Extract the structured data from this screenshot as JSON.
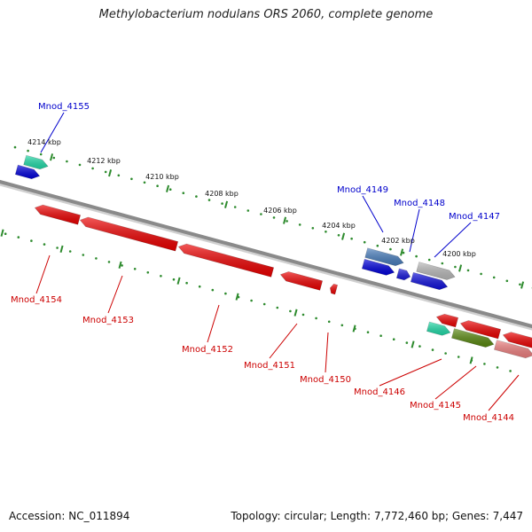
{
  "title": "Methylobacterium nodulans ORS 2060, complete genome",
  "footer": {
    "accession": "Accession: NC_011894",
    "summary": "Topology: circular; Length: 7,772,460 bp; Genes: 7,447"
  },
  "colors": {
    "backbone": "#8a8a8a",
    "tick": "#2e8b2e",
    "forward_label": "#0000cc",
    "reverse_label": "#cc0000"
  },
  "scale": {
    "unit": "kbp",
    "labels": [
      "4214 kbp",
      "4212 kbp",
      "4210 kbp",
      "4208 kbp",
      "4206 kbp",
      "4204 kbp",
      "4202 kbp",
      "4200 kbp"
    ]
  },
  "genes": [
    {
      "name": "Mnod_4155",
      "strand": "forward",
      "color": "#0000dd"
    },
    {
      "name": "Mnod_4149",
      "strand": "forward",
      "color": "#0000dd"
    },
    {
      "name": "Mnod_4148",
      "strand": "forward",
      "color": "#1a1add"
    },
    {
      "name": "Mnod_4147",
      "strand": "forward",
      "color": "#1010dd"
    },
    {
      "name": "Mnod_4154",
      "strand": "reverse",
      "color": "#ee0000"
    },
    {
      "name": "Mnod_4153",
      "strand": "reverse",
      "color": "#ee0000"
    },
    {
      "name": "Mnod_4152",
      "strand": "reverse",
      "color": "#ee0000"
    },
    {
      "name": "Mnod_4151",
      "strand": "reverse",
      "color": "#ee0000"
    },
    {
      "name": "Mnod_4150",
      "strand": "reverse",
      "color": "#ee0000"
    },
    {
      "name": "Mnod_4146",
      "strand": "reverse",
      "color": "#ee0000"
    },
    {
      "name": "Mnod_4145",
      "strand": "reverse",
      "color": "#ee0000"
    },
    {
      "name": "Mnod_4144",
      "strand": "reverse",
      "color": "#ee0000"
    }
  ],
  "features": [
    {
      "name": "teal-feature-top",
      "color": "#22ddaa"
    },
    {
      "name": "steel-blue-feature",
      "color": "#4a7fbf"
    },
    {
      "name": "gray-feature",
      "color": "#bbbbbb"
    },
    {
      "name": "teal-feature-bottom",
      "color": "#22ddaa"
    },
    {
      "name": "olive-feature",
      "color": "#5a8a10"
    },
    {
      "name": "pink-feature",
      "color": "#f08080"
    }
  ]
}
